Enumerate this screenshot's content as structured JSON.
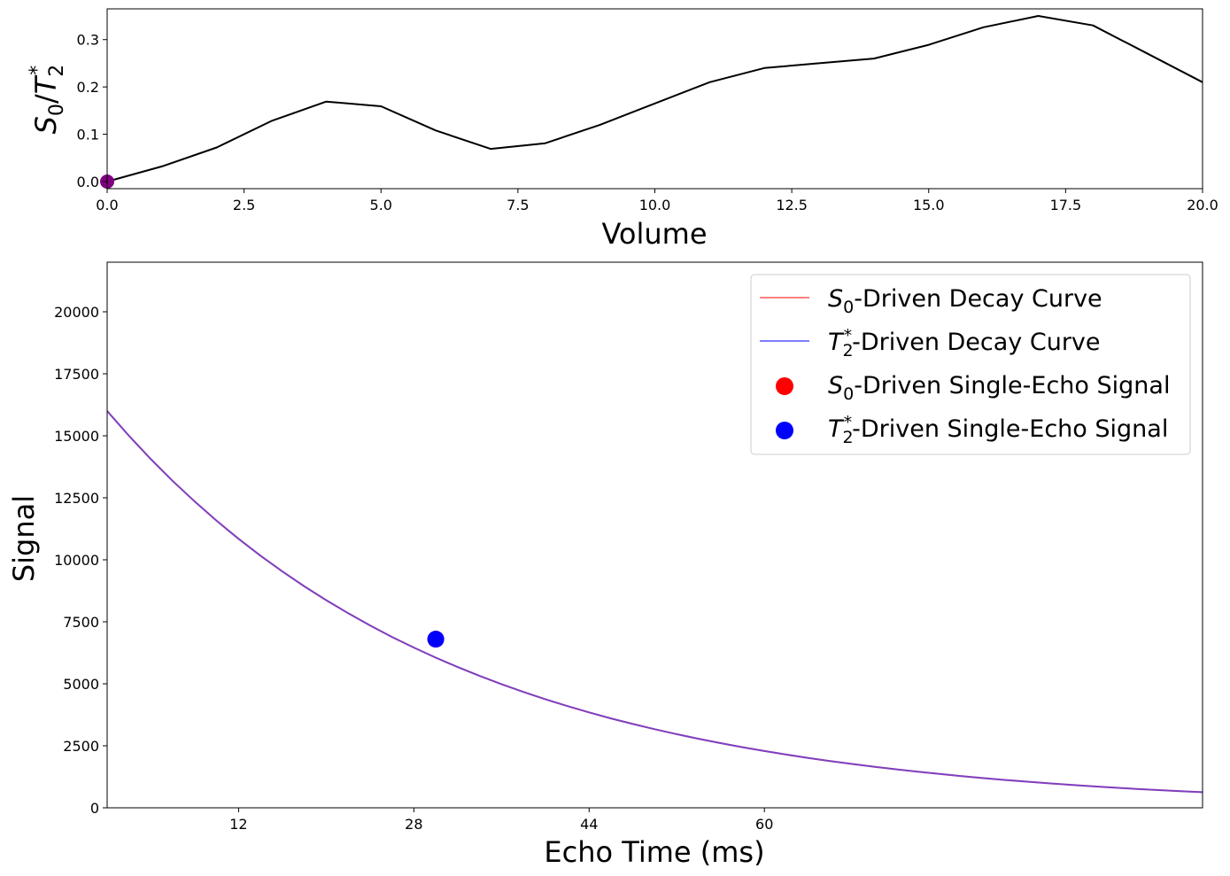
{
  "chart_data": [
    {
      "type": "line",
      "xlabel": "Volume",
      "ylabel_parts": {
        "a": "S",
        "a_sub": "0",
        "slash": "/",
        "b": "T",
        "b_sub": "2",
        "b_sup": "*"
      },
      "xlim": [
        0,
        20
      ],
      "ylim": [
        -0.015,
        0.365
      ],
      "xticks": [
        "0.0",
        "2.5",
        "5.0",
        "7.5",
        "10.0",
        "12.5",
        "15.0",
        "17.5",
        "20.0"
      ],
      "xtick_values": [
        0,
        2.5,
        5,
        7.5,
        10,
        12.5,
        15,
        17.5,
        20
      ],
      "yticks": [
        "0.0",
        "0.1",
        "0.2",
        "0.3"
      ],
      "ytick_values": [
        0,
        0.1,
        0.2,
        0.3
      ],
      "grid": false,
      "series": [
        {
          "color": "#000000",
          "x": [
            0,
            1,
            2,
            3,
            4,
            5,
            6,
            7,
            8,
            9,
            10,
            11,
            12,
            13,
            14,
            15,
            16,
            17,
            18,
            19,
            20
          ],
          "y": [
            0.0,
            0.032,
            0.072,
            0.128,
            0.169,
            0.159,
            0.108,
            0.069,
            0.081,
            0.12,
            0.165,
            0.21,
            0.24,
            0.25,
            0.26,
            0.289,
            0.326,
            0.35,
            0.33,
            0.27,
            0.21
          ]
        }
      ],
      "marker": {
        "x": 0,
        "y": 0.0,
        "color": "#800080"
      }
    },
    {
      "type": "line",
      "xlabel": "Echo Time (ms)",
      "ylabel": "Signal",
      "xlim": [
        0,
        100
      ],
      "ylim": [
        0,
        22000
      ],
      "xticks": [
        "12",
        "28",
        "44",
        "60"
      ],
      "xtick_values": [
        12,
        28,
        44,
        60
      ],
      "yticks": [
        "0",
        "2500",
        "5000",
        "7500",
        "10000",
        "12500",
        "15000",
        "17500",
        "20000"
      ],
      "ytick_values": [
        0,
        2500,
        5000,
        7500,
        10000,
        12500,
        15000,
        17500,
        20000
      ],
      "grid": false,
      "legend_position": "upper right",
      "curve": {
        "x": [
          0,
          2,
          4,
          6,
          8,
          10,
          12,
          14,
          16,
          18,
          20,
          22,
          24,
          26,
          28,
          30,
          32,
          34,
          36,
          38,
          40,
          42,
          44,
          46,
          48,
          50,
          52,
          54,
          56,
          58,
          60,
          62,
          64,
          66,
          68,
          70,
          72,
          74,
          76,
          78,
          80,
          82,
          84,
          86,
          88,
          90,
          92,
          94,
          96,
          98,
          100
        ],
        "y": [
          16000,
          14996,
          14055,
          13173,
          12347,
          11572,
          10846,
          10166,
          9528,
          8930,
          8370,
          7845,
          7352,
          6891,
          6459,
          6054,
          5674,
          5318,
          4984,
          4672,
          4379,
          4104,
          3846,
          3605,
          3379,
          3167,
          2968,
          2782,
          2607,
          2444,
          2290,
          2147,
          2012,
          1886,
          1767,
          1657,
          1553,
          1455,
          1364,
          1278,
          1198,
          1123,
          1052,
          986,
          924,
          866,
          812,
          761,
          713,
          668,
          627
        ]
      },
      "single_echo_point": {
        "x": 30,
        "y": 6800
      },
      "series": [
        {
          "name_parts": {
            "sym": "S",
            "sub": "0",
            "sup": "",
            "text": "-Driven Decay Curve"
          },
          "kind": "line",
          "color": "#ff0000",
          "alpha": 0.5
        },
        {
          "name_parts": {
            "sym": "T",
            "sub": "2",
            "sup": "*",
            "text": "-Driven Decay Curve"
          },
          "kind": "line",
          "color": "#0000ff",
          "alpha": 0.5
        },
        {
          "name_parts": {
            "sym": "S",
            "sub": "0",
            "sup": "",
            "text": "-Driven Single-Echo Signal"
          },
          "kind": "marker",
          "color": "#ff0000"
        },
        {
          "name_parts": {
            "sym": "T",
            "sub": "2",
            "sup": "*",
            "text": "-Driven Single-Echo Signal"
          },
          "kind": "marker",
          "color": "#0000ff"
        }
      ],
      "overlap_color": "#8040c0"
    }
  ]
}
